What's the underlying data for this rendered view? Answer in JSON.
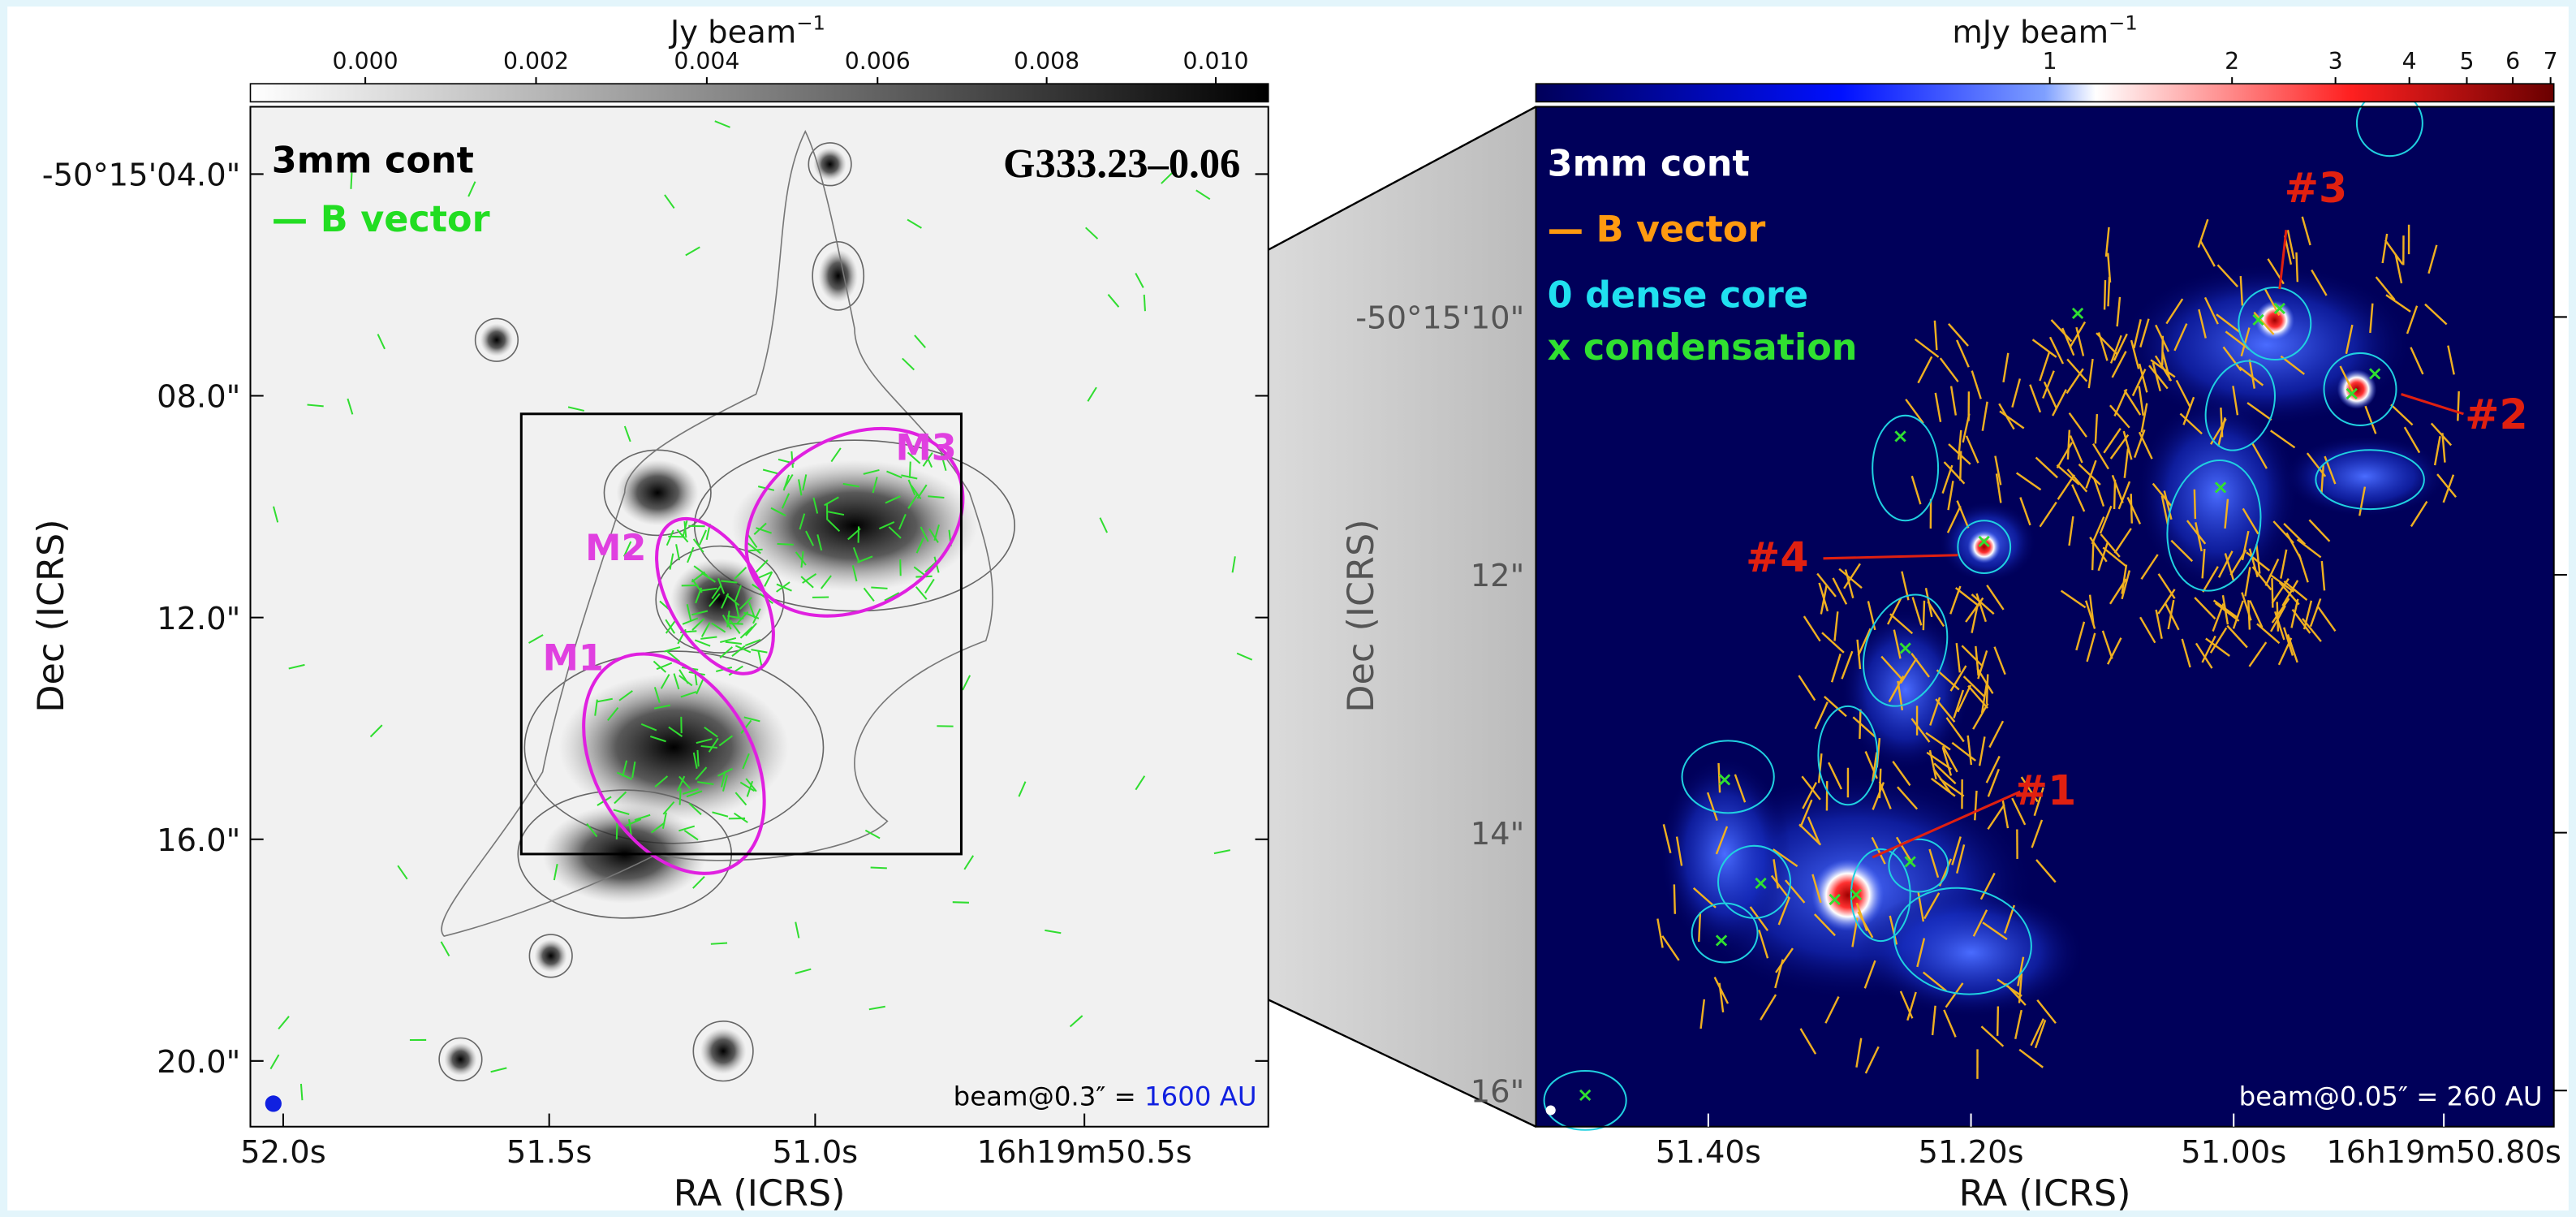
{
  "left_panel": {
    "colorbar": {
      "label": "Jy beam",
      "exponent": "−1",
      "ticks": [
        "0.000",
        "0.002",
        "0.004",
        "0.006",
        "0.008",
        "0.010"
      ]
    },
    "title": "G333.23–0.06",
    "legend": [
      "3mm cont",
      "— B vector"
    ],
    "regions": [
      "M1",
      "M2",
      "M3"
    ],
    "y_ticks": [
      "-50°15'04.0\"",
      "08.0\"",
      "12.0\"",
      "16.0\"",
      "20.0\""
    ],
    "x_ticks": [
      "52.0s",
      "51.5s",
      "51.0s",
      "16h19m50.5s"
    ],
    "x_label": "RA (ICRS)",
    "y_label": "Dec (ICRS)",
    "beam": {
      "text": "beam@0.3″ = ",
      "scale": "1600 AU"
    }
  },
  "right_panel": {
    "colorbar": {
      "label": "mJy beam",
      "exponent": "−1",
      "ticks": [
        "1",
        "2",
        "3",
        "4",
        "5",
        "6",
        "7"
      ]
    },
    "legend": [
      "3mm cont",
      "— B vector",
      "0 dense core",
      "x condensation"
    ],
    "sources": [
      "#3",
      "#2",
      "#4",
      "#1"
    ],
    "y_ticks": [
      "-50°15'10\"",
      "12\"",
      "14\"",
      "16\""
    ],
    "x_ticks": [
      "51.40s",
      "51.20s",
      "51.00s",
      "16h19m50.80s"
    ],
    "x_label": "RA (ICRS)",
    "y_label": "Dec (ICRS)",
    "beam": {
      "text": "beam@0.05″ = ",
      "scale": "260 AU"
    }
  }
}
